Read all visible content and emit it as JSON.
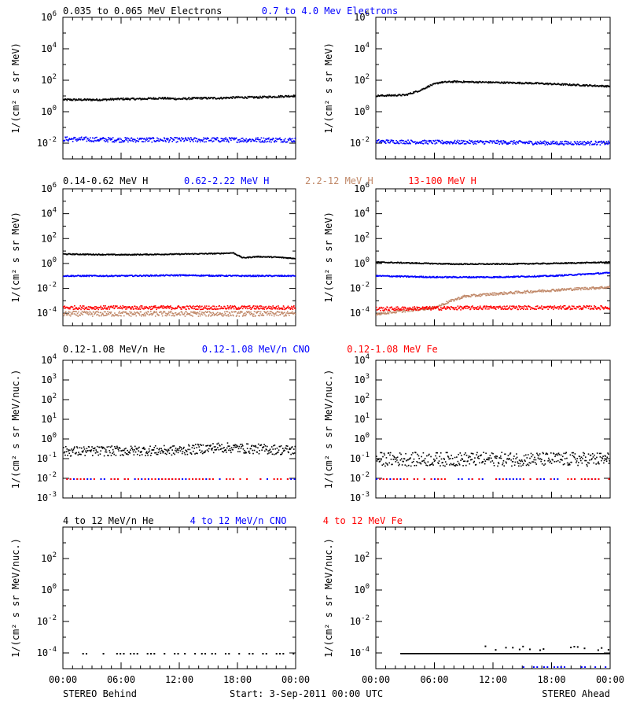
{
  "colors": {
    "black": "#000000",
    "blue": "#0000ff",
    "tan": "#c08868",
    "red": "#ff0000"
  },
  "footer": {
    "left": "STEREO Behind",
    "center": "Start:  3-Sep-2011 00:00 UTC",
    "right": "STEREO Ahead"
  },
  "x_ticks": [
    "00:00",
    "06:00",
    "12:00",
    "18:00",
    "00:00"
  ],
  "chart_data": [
    {
      "type": "scatter",
      "id": "electrons",
      "ylabel": "1/(cm² s sr MeV)",
      "ylim_log10": [
        -3,
        6
      ],
      "tick_exponents": [
        -2,
        0,
        2,
        4,
        6
      ],
      "x_range_hours": [
        0,
        24
      ],
      "grid": false,
      "legend": [
        {
          "label": "0.035 to 0.065 MeV Electrons",
          "color": "#000000"
        },
        {
          "label": "0.7 to 4.0 Mev Electrons",
          "color": "#0000ff"
        }
      ],
      "panels": [
        {
          "side": "behind",
          "series": [
            {
              "color": "#000000",
              "points": [
                [
                  0,
                  0.8
                ],
                [
                  2,
                  0.8
                ],
                [
                  4,
                  0.8
                ],
                [
                  6,
                  0.85
                ],
                [
                  8,
                  0.85
                ],
                [
                  10,
                  0.9
                ],
                [
                  12,
                  0.85
                ],
                [
                  14,
                  0.9
                ],
                [
                  16,
                  0.9
                ],
                [
                  18,
                  0.95
                ],
                [
                  20,
                  0.95
                ],
                [
                  22,
                  1.0
                ],
                [
                  24,
                  1.05
                ]
              ],
              "scatter": 0.06
            },
            {
              "color": "#0000ff",
              "points": [
                [
                  0,
                  -1.7
                ],
                [
                  6,
                  -1.75
                ],
                [
                  12,
                  -1.75
                ],
                [
                  18,
                  -1.75
                ],
                [
                  24,
                  -1.75
                ]
              ],
              "scatter": 0.15
            }
          ]
        },
        {
          "side": "ahead",
          "series": [
            {
              "color": "#000000",
              "points": [
                [
                  0,
                  1.05
                ],
                [
                  3,
                  1.1
                ],
                [
                  4.5,
                  1.4
                ],
                [
                  5.5,
                  1.7
                ],
                [
                  6.5,
                  1.9
                ],
                [
                  8,
                  1.95
                ],
                [
                  12,
                  1.9
                ],
                [
                  16,
                  1.85
                ],
                [
                  20,
                  1.75
                ],
                [
                  24,
                  1.65
                ]
              ],
              "scatter": 0.05
            },
            {
              "color": "#0000ff",
              "points": [
                [
                  0,
                  -1.85
                ],
                [
                  6,
                  -1.9
                ],
                [
                  12,
                  -1.9
                ],
                [
                  18,
                  -1.95
                ],
                [
                  24,
                  -1.95
                ]
              ],
              "scatter": 0.12
            }
          ]
        }
      ]
    },
    {
      "type": "scatter",
      "id": "protons",
      "ylabel": "1/(cm² s sr MeV)",
      "ylim_log10": [
        -5,
        6
      ],
      "tick_exponents": [
        -4,
        -2,
        0,
        2,
        4,
        6
      ],
      "x_range_hours": [
        0,
        24
      ],
      "grid": false,
      "legend": [
        {
          "label": "0.14-0.62 MeV H",
          "color": "#000000"
        },
        {
          "label": "0.62-2.22 MeV H",
          "color": "#0000ff"
        },
        {
          "label": "2.2-12 MeV H",
          "color": "#c08868"
        },
        {
          "label": "13-100 MeV H",
          "color": "#ff0000"
        }
      ],
      "panels": [
        {
          "side": "behind",
          "series": [
            {
              "color": "#000000",
              "points": [
                [
                  0,
                  0.8
                ],
                [
                  6,
                  0.75
                ],
                [
                  12,
                  0.8
                ],
                [
                  16,
                  0.85
                ],
                [
                  17.5,
                  0.9
                ],
                [
                  18.5,
                  0.5
                ],
                [
                  20,
                  0.6
                ],
                [
                  22,
                  0.55
                ],
                [
                  24,
                  0.45
                ]
              ],
              "scatter": 0.04
            },
            {
              "color": "#0000ff",
              "points": [
                [
                  0,
                  -0.95
                ],
                [
                  6,
                  -0.95
                ],
                [
                  12,
                  -0.9
                ],
                [
                  18,
                  -0.95
                ],
                [
                  24,
                  -0.95
                ]
              ],
              "scatter": 0.05
            },
            {
              "color": "#c08868",
              "points": [
                [
                  0,
                  -4.0
                ],
                [
                  12,
                  -4.0
                ],
                [
                  24,
                  -4.0
                ]
              ],
              "scatter": 0.2
            },
            {
              "color": "#ff0000",
              "points": [
                [
                  0,
                  -3.5
                ],
                [
                  12,
                  -3.5
                ],
                [
                  24,
                  -3.5
                ]
              ],
              "scatter": 0.15
            }
          ]
        },
        {
          "side": "ahead",
          "series": [
            {
              "color": "#000000",
              "points": [
                [
                  0,
                  0.15
                ],
                [
                  8,
                  0.0
                ],
                [
                  12,
                  0.0
                ],
                [
                  18,
                  0.05
                ],
                [
                  24,
                  0.15
                ]
              ],
              "scatter": 0.04
            },
            {
              "color": "#0000ff",
              "points": [
                [
                  0,
                  -0.95
                ],
                [
                  6,
                  -1.05
                ],
                [
                  12,
                  -1.05
                ],
                [
                  18,
                  -0.95
                ],
                [
                  24,
                  -0.7
                ]
              ],
              "scatter": 0.05
            },
            {
              "color": "#c08868",
              "points": [
                [
                  0,
                  -4.0
                ],
                [
                  6,
                  -3.5
                ],
                [
                  7.5,
                  -3.0
                ],
                [
                  9,
                  -2.6
                ],
                [
                  12,
                  -2.4
                ],
                [
                  18,
                  -2.1
                ],
                [
                  24,
                  -1.85
                ]
              ],
              "scatter": 0.1
            },
            {
              "color": "#ff0000",
              "points": [
                [
                  0,
                  -3.6
                ],
                [
                  12,
                  -3.5
                ],
                [
                  24,
                  -3.5
                ]
              ],
              "scatter": 0.15
            }
          ]
        }
      ]
    },
    {
      "type": "scatter",
      "id": "suprathermal",
      "ylabel": "1/(cm² s sr MeV/nuc.)",
      "ylim_log10": [
        -3,
        4
      ],
      "tick_exponents": [
        -3,
        -2,
        -1,
        0,
        1,
        2,
        3,
        4
      ],
      "x_range_hours": [
        0,
        24
      ],
      "grid": false,
      "legend": [
        {
          "label": "0.12-1.08 MeV/n He",
          "color": "#000000"
        },
        {
          "label": "0.12-1.08 MeV/n CNO",
          "color": "#0000ff"
        },
        {
          "label": "0.12-1.08 MeV Fe",
          "color": "#ff0000"
        }
      ],
      "panels": [
        {
          "side": "behind",
          "series": [
            {
              "color": "#000000",
              "points": [
                [
                  0,
                  -0.6
                ],
                [
                  12,
                  -0.55
                ],
                [
                  16,
                  -0.4
                ],
                [
                  24,
                  -0.55
                ]
              ],
              "scatter": 0.25
            },
            {
              "color": "#0000ff",
              "points": [
                [
                  0,
                  -2.0
                ],
                [
                  24,
                  -2.0
                ]
              ],
              "scatter": 0.0,
              "sparse": true
            },
            {
              "color": "#ff0000",
              "points": [
                [
                  0,
                  -2.0
                ],
                [
                  24,
                  -2.0
                ]
              ],
              "scatter": 0.0,
              "sparse": true
            }
          ]
        },
        {
          "side": "ahead",
          "series": [
            {
              "color": "#000000",
              "points": [
                [
                  0,
                  -1.0
                ],
                [
                  24,
                  -1.0
                ]
              ],
              "scatter": 0.35
            },
            {
              "color": "#0000ff",
              "points": [
                [
                  0,
                  -2.0
                ],
                [
                  24,
                  -2.0
                ]
              ],
              "scatter": 0.0,
              "sparse": true
            },
            {
              "color": "#ff0000",
              "points": [
                [
                  0,
                  -2.0
                ],
                [
                  24,
                  -2.0
                ]
              ],
              "scatter": 0.0,
              "sparse": true
            }
          ]
        }
      ]
    },
    {
      "type": "scatter",
      "id": "energetic",
      "ylabel": "1/(cm² s sr MeV/nuc.)",
      "ylim_log10": [
        -5,
        4
      ],
      "tick_exponents": [
        -4,
        -2,
        0,
        2
      ],
      "x_range_hours": [
        0,
        24
      ],
      "grid": false,
      "legend": [
        {
          "label": "4 to 12 MeV/n He",
          "color": "#000000"
        },
        {
          "label": "4 to 12 MeV/n CNO",
          "color": "#0000ff"
        },
        {
          "label": "4 to 12 MeV Fe",
          "color": "#ff0000"
        }
      ],
      "panels": [
        {
          "side": "behind",
          "series": [
            {
              "color": "#000000",
              "points": [
                [
                  2,
                  -4.0
                ],
                [
                  24,
                  -4.0
                ]
              ],
              "scatter": 0.0,
              "sparse": true
            }
          ]
        },
        {
          "side": "ahead",
          "series": [
            {
              "color": "#000000",
              "points": [
                [
                  2.5,
                  -4.0
                ],
                [
                  6.5,
                  -4.0
                ],
                [
                  24,
                  -4.0
                ]
              ],
              "scatter": 0.0,
              "band": true
            },
            {
              "color": "#000000",
              "points": [
                [
                  8,
                  -3.65
                ],
                [
                  24,
                  -3.65
                ]
              ],
              "scatter": 0.15,
              "sparse": true
            },
            {
              "color": "#0000ff",
              "points": [
                [
                  14,
                  -4.85
                ],
                [
                  24,
                  -4.85
                ]
              ],
              "scatter": 0.0,
              "sparse": true
            }
          ]
        }
      ]
    }
  ]
}
